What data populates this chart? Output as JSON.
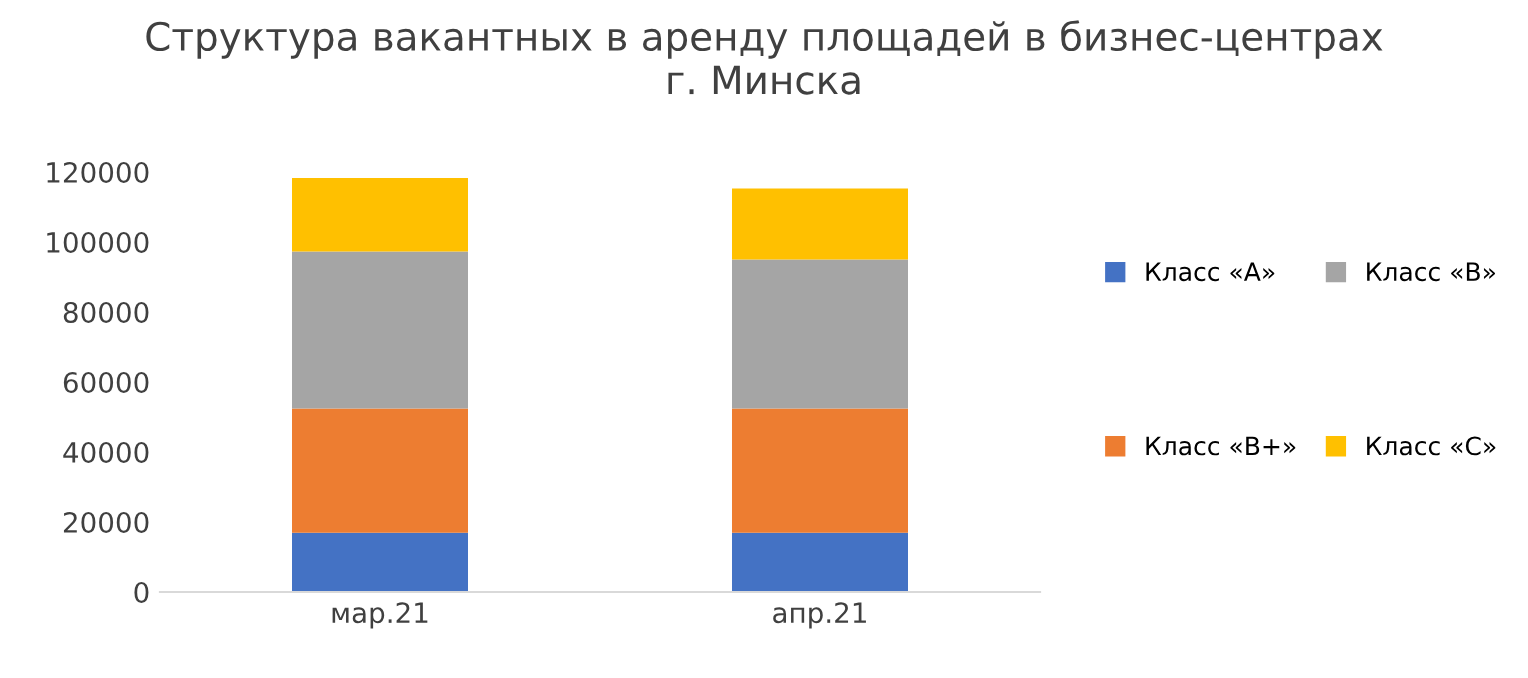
{
  "chart_data": {
    "type": "bar",
    "stacked": true,
    "title": "Структура вакантных в аренду площадей в бизнес-центрах\nг. Минска",
    "categories": [
      "мар.21",
      "апр.21"
    ],
    "series": [
      {
        "name": "Класс «А»",
        "color": "#4472c4",
        "values": [
          16900,
          16900
        ]
      },
      {
        "name": "Класс «В+»",
        "color": "#ed7d31",
        "values": [
          35500,
          35500
        ]
      },
      {
        "name": "Класс «В»",
        "color": "#a5a5a5",
        "values": [
          44900,
          42600
        ]
      },
      {
        "name": "Класс «С»",
        "color": "#ffc000",
        "values": [
          21000,
          20300
        ]
      }
    ],
    "ylim": [
      0,
      120000
    ],
    "yticks": [
      0,
      20000,
      40000,
      60000,
      80000,
      100000,
      120000
    ],
    "grid": false,
    "legend": "right"
  }
}
